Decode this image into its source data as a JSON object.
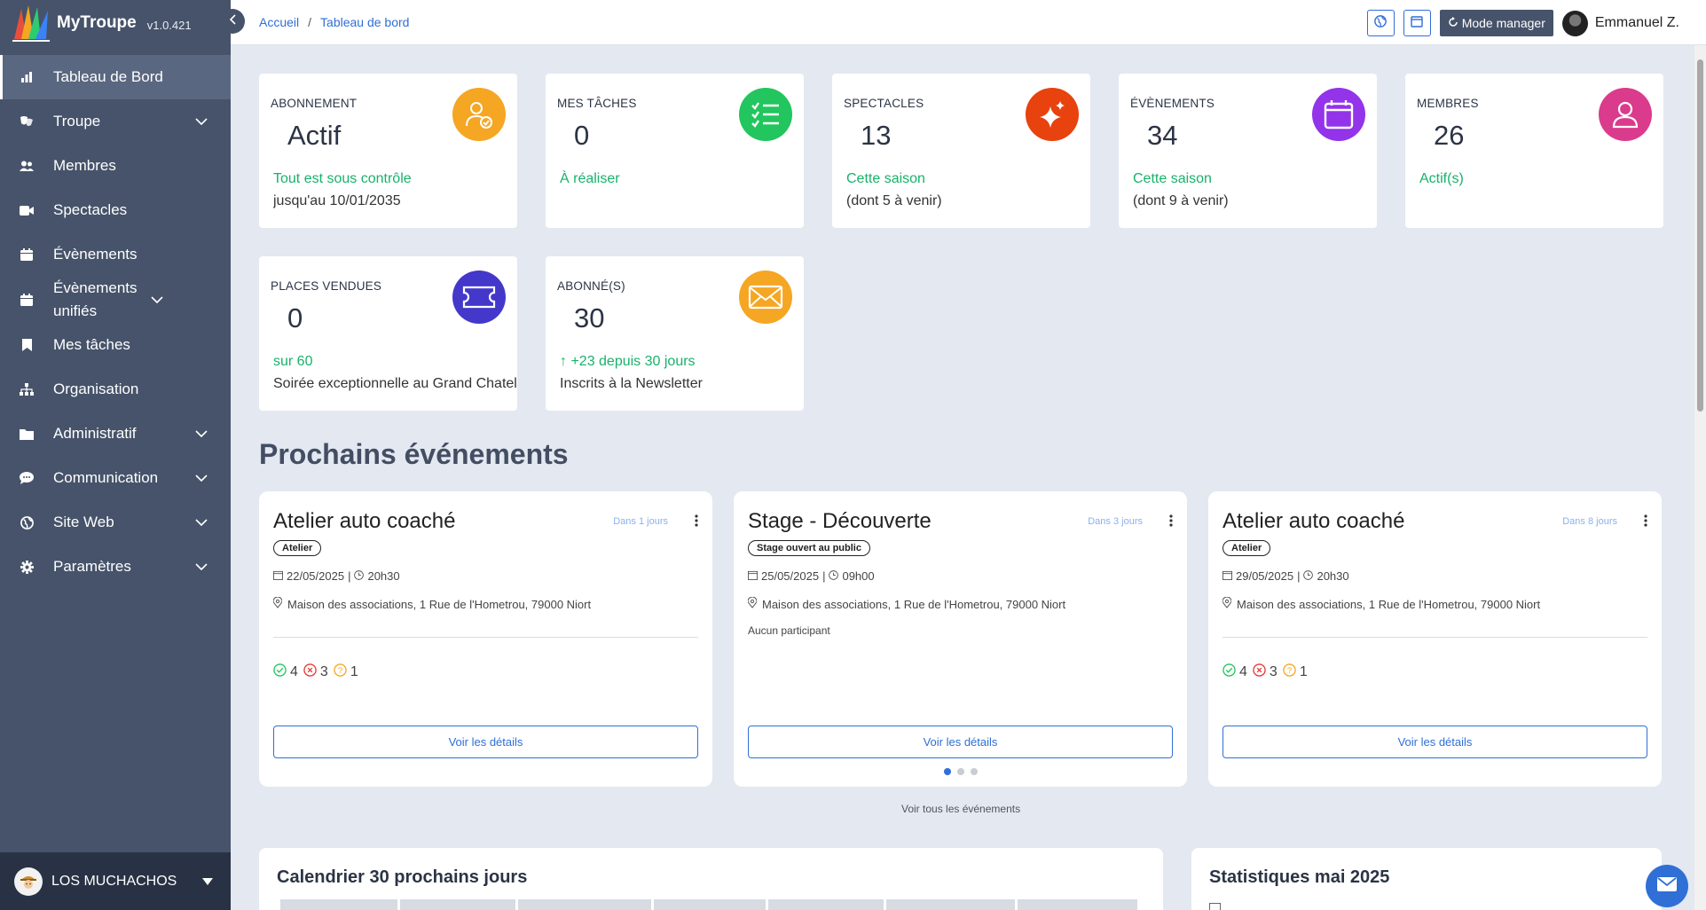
{
  "app": {
    "name": "MyTroupe",
    "version": "v1.0.421"
  },
  "sidebar": {
    "items": [
      {
        "label": "Tableau de Bord",
        "icon": "chart-bar-icon",
        "expandable": false,
        "active": true
      },
      {
        "label": "Troupe",
        "icon": "masks-icon",
        "expandable": true
      },
      {
        "label": "Membres",
        "icon": "users-icon",
        "expandable": false
      },
      {
        "label": "Spectacles",
        "icon": "video-icon",
        "expandable": false
      },
      {
        "label": "Évènements",
        "icon": "calendar-icon",
        "expandable": false
      },
      {
        "label": "Évènements unifiés",
        "icon": "calendar-stack-icon",
        "expandable": true
      },
      {
        "label": "Mes tâches",
        "icon": "bookmark-icon",
        "expandable": false
      },
      {
        "label": "Organisation",
        "icon": "sitemap-icon",
        "expandable": false
      },
      {
        "label": "Administratif",
        "icon": "folder-icon",
        "expandable": true
      },
      {
        "label": "Communication",
        "icon": "chat-icon",
        "expandable": true
      },
      {
        "label": "Site Web",
        "icon": "globe-icon",
        "expandable": true
      },
      {
        "label": "Paramètres",
        "icon": "gear-icon",
        "expandable": true
      }
    ],
    "organization": "LOS MUCHACHOS"
  },
  "topbar": {
    "breadcrumb": [
      "Accueil",
      "Tableau de bord"
    ],
    "manager_button": "Mode manager",
    "user_name": "Emmanuel Z."
  },
  "kpis": [
    {
      "title": "Abonnement",
      "value": "Actif",
      "line1": "Tout est sous contrôle",
      "line2": "jusqu'au 10/01/2035",
      "icon": "user-check-icon",
      "color": "#f5a623"
    },
    {
      "title": "Mes tâches",
      "value": "0",
      "line1": "À réaliser",
      "line2": "",
      "icon": "task-list-icon",
      "color": "#22c55e"
    },
    {
      "title": "Spectacles",
      "value": "13",
      "line1": "Cette saison",
      "line2": "(dont 5 à venir)",
      "icon": "sparkles-icon",
      "color": "#e8420e"
    },
    {
      "title": "Évènements",
      "value": "34",
      "line1": "Cette saison",
      "line2": "(dont 9 à venir)",
      "icon": "calendar-icon",
      "color": "#9333ea"
    },
    {
      "title": "Membres",
      "value": "26",
      "line1": "Actif(s)",
      "line2": "",
      "icon": "user-icon",
      "color": "#db3b8c"
    },
    {
      "title": "Places vendues",
      "value": "0",
      "line1": "sur 60",
      "line2": "Soirée exceptionnelle au Grand Chatel",
      "icon": "ticket-icon",
      "color": "#4338ca"
    },
    {
      "title": "Abonné(s)",
      "value": "30",
      "line1": "↑ +23 depuis 30 jours",
      "line2": "Inscrits à la Newsletter",
      "icon": "envelope-icon",
      "color": "#f5a623"
    }
  ],
  "events_section": {
    "title": "Prochains événements",
    "see_all": "Voir tous les événements",
    "events": [
      {
        "title": "Atelier auto coaché",
        "relative": "Dans 1 jours",
        "tag": "Atelier",
        "date": "22/05/2025",
        "time": "20h30",
        "location": "Maison des associations, 1 Rue de l'Hometrou, 79000 Niort",
        "yes": "4",
        "no": "3",
        "maybe": "1",
        "participants_note": "",
        "button": "Voir les détails"
      },
      {
        "title": "Stage - Découverte",
        "relative": "Dans 3 jours",
        "tag": "Stage ouvert au public",
        "date": "25/05/2025",
        "time": "09h00",
        "location": "Maison des associations, 1 Rue de l'Hometrou, 79000 Niort",
        "yes": "",
        "no": "",
        "maybe": "",
        "participants_note": "Aucun participant",
        "button": "Voir les détails"
      },
      {
        "title": "Atelier auto coaché",
        "relative": "Dans 8 jours",
        "tag": "Atelier",
        "date": "29/05/2025",
        "time": "20h30",
        "location": "Maison des associations, 1 Rue de l'Hometrou, 79000 Niort",
        "yes": "4",
        "no": "3",
        "maybe": "1",
        "participants_note": "",
        "button": "Voir les détails"
      }
    ]
  },
  "calendar_panel": {
    "title": "Calendrier 30 prochains jours"
  },
  "stats_panel": {
    "title": "Statistiques mai 2025"
  }
}
